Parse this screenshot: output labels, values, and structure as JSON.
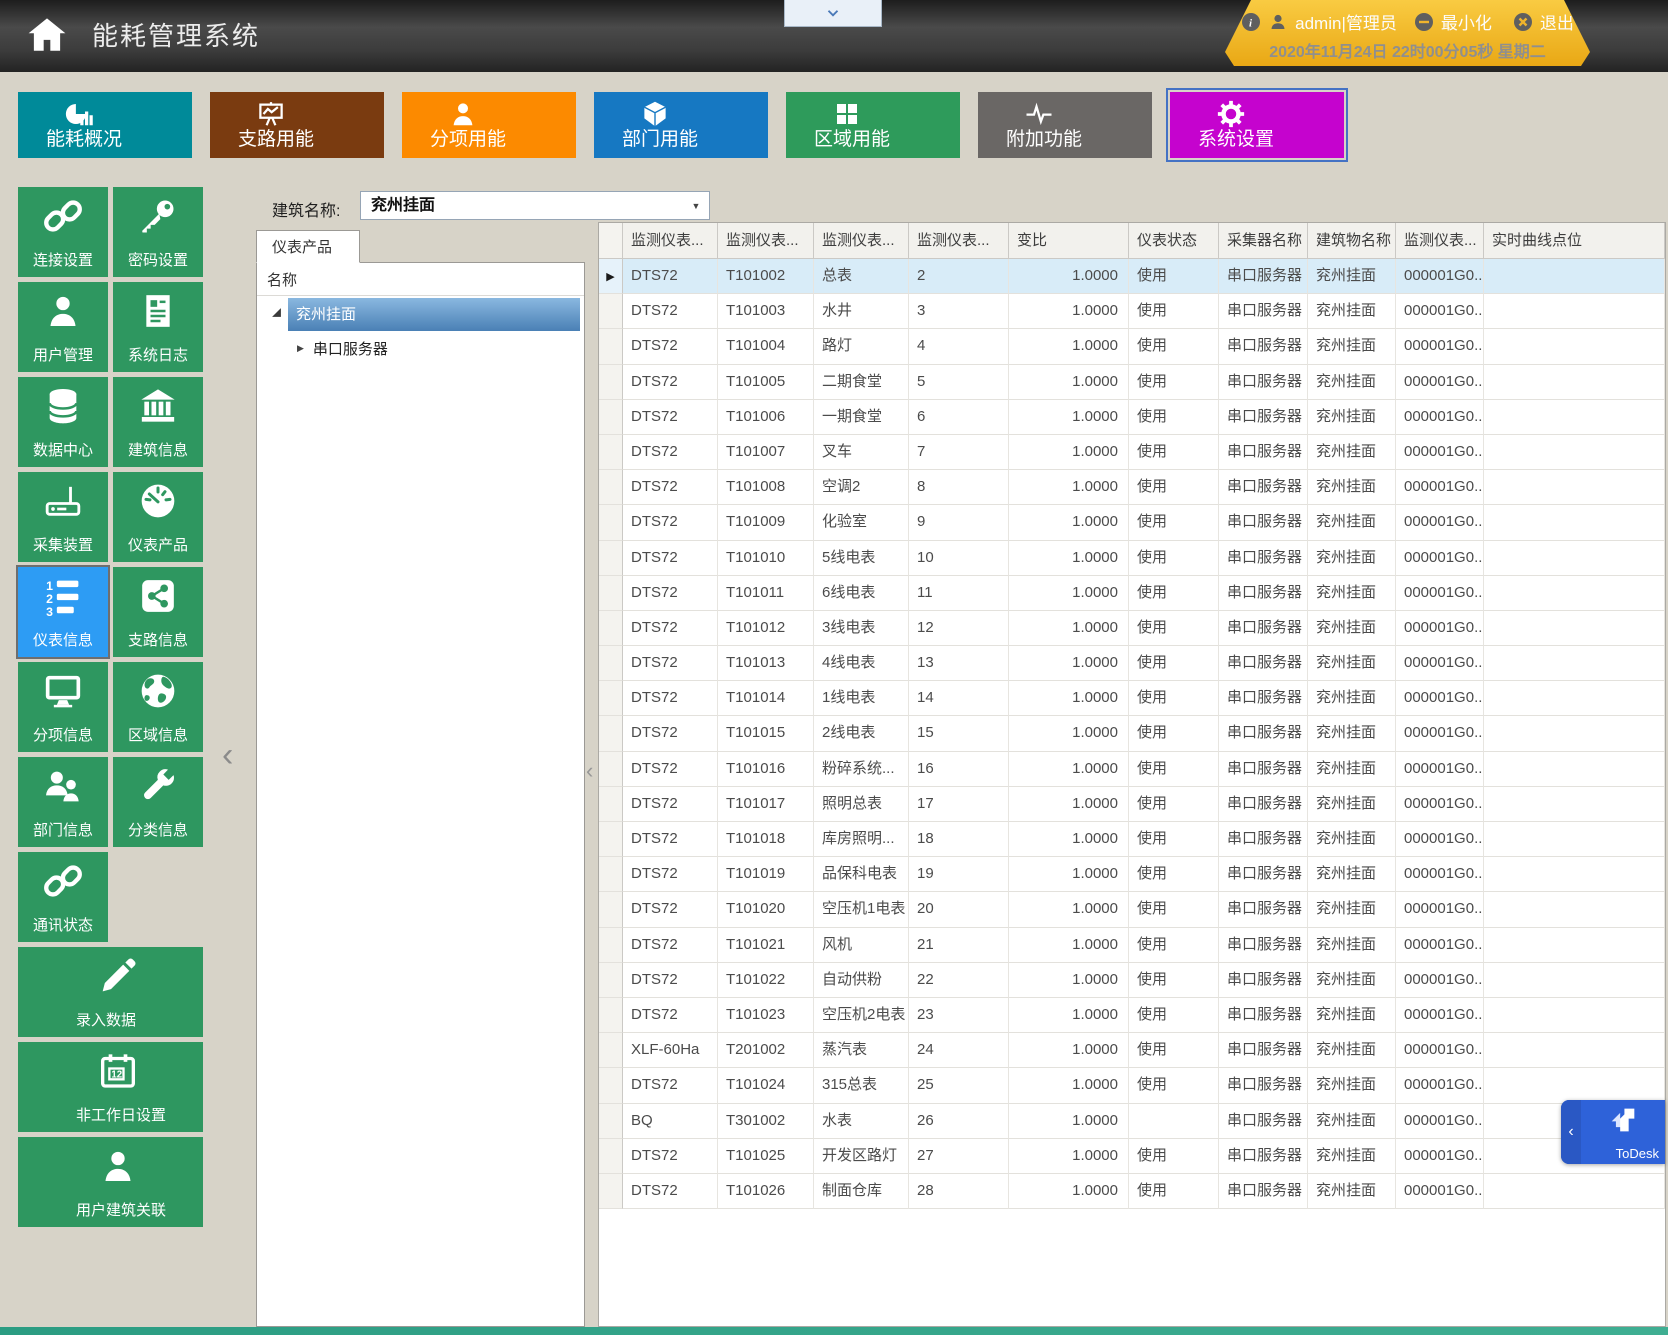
{
  "header": {
    "app_title": "能耗管理系统",
    "user": "admin|管理员",
    "minimize_label": "最小化",
    "exit_label": "退出",
    "datetime": "2020年11月24日 22时00分05秒 星期二"
  },
  "nav_tabs": [
    {
      "label": "能耗概况",
      "icon": "pie-chart-icon",
      "color": "#008A99",
      "selected": false
    },
    {
      "label": "支路用能",
      "icon": "chart-board-icon",
      "color": "#7A3B10",
      "selected": false
    },
    {
      "label": "分项用能",
      "icon": "person-icon",
      "color": "#FC8A00",
      "selected": false
    },
    {
      "label": "部门用能",
      "icon": "cube-icon",
      "color": "#1678C2",
      "selected": false
    },
    {
      "label": "区域用能",
      "icon": "grid-icon",
      "color": "#2E9B5B",
      "selected": false
    },
    {
      "label": "附加功能",
      "icon": "pulse-icon",
      "color": "#6A6765",
      "selected": false
    },
    {
      "label": "系统设置",
      "icon": "gear-icon",
      "color": "#C503CE",
      "selected": true
    }
  ],
  "sidebar": {
    "items": [
      {
        "label": "连接设置",
        "icon": "link-icon",
        "wide": false,
        "selected": false
      },
      {
        "label": "密码设置",
        "icon": "key-icon",
        "wide": false,
        "selected": false
      },
      {
        "label": "用户管理",
        "icon": "user-icon",
        "wide": false,
        "selected": false
      },
      {
        "label": "系统日志",
        "icon": "log-icon",
        "wide": false,
        "selected": false
      },
      {
        "label": "数据中心",
        "icon": "database-icon",
        "wide": false,
        "selected": false
      },
      {
        "label": "建筑信息",
        "icon": "building-icon",
        "wide": false,
        "selected": false
      },
      {
        "label": "采集装置",
        "icon": "router-icon",
        "wide": false,
        "selected": false
      },
      {
        "label": "仪表产品",
        "icon": "gauge-icon",
        "wide": false,
        "selected": false
      },
      {
        "label": "仪表信息",
        "icon": "numbered-list-icon",
        "wide": false,
        "selected": true
      },
      {
        "label": "支路信息",
        "icon": "share-nodes-icon",
        "wide": false,
        "selected": false
      },
      {
        "label": "分项信息",
        "icon": "monitor-icon",
        "wide": false,
        "selected": false
      },
      {
        "label": "区域信息",
        "icon": "globe-icon",
        "wide": false,
        "selected": false
      },
      {
        "label": "部门信息",
        "icon": "users-icon",
        "wide": false,
        "selected": false
      },
      {
        "label": "分类信息",
        "icon": "wrench-icon",
        "wide": false,
        "selected": false
      },
      {
        "label": "通讯状态",
        "icon": "link-icon",
        "wide": false,
        "selected": false
      },
      {
        "label": "录入数据",
        "icon": "pencil-icon",
        "wide": true,
        "selected": false
      },
      {
        "label": "非工作日设置",
        "icon": "calendar-icon",
        "wide": true,
        "selected": false
      },
      {
        "label": "用户建筑关联",
        "icon": "user-icon",
        "wide": true,
        "selected": false
      }
    ]
  },
  "building_selector": {
    "label": "建筑名称:",
    "value": "兖州挂面"
  },
  "tree_panel": {
    "tab_label": "仪表产品",
    "column_header": "名称",
    "root_node": "兖州挂面",
    "child_node": "串口服务器"
  },
  "table": {
    "columns": [
      "监测仪表...",
      "监测仪表...",
      "监测仪表...",
      "监测仪表...",
      "变比",
      "仪表状态",
      "采集器名称",
      "建筑物名称",
      "监测仪表...",
      "实时曲线点位"
    ],
    "selected_row_index": 0,
    "rows": [
      [
        "DTS72",
        "T101002",
        "总表",
        "2",
        "1.0000",
        "使用",
        "串口服务器",
        "兖州挂面",
        "000001G0...",
        ""
      ],
      [
        "DTS72",
        "T101003",
        "水井",
        "3",
        "1.0000",
        "使用",
        "串口服务器",
        "兖州挂面",
        "000001G0...",
        ""
      ],
      [
        "DTS72",
        "T101004",
        "路灯",
        "4",
        "1.0000",
        "使用",
        "串口服务器",
        "兖州挂面",
        "000001G0...",
        ""
      ],
      [
        "DTS72",
        "T101005",
        "二期食堂",
        "5",
        "1.0000",
        "使用",
        "串口服务器",
        "兖州挂面",
        "000001G0...",
        ""
      ],
      [
        "DTS72",
        "T101006",
        "一期食堂",
        "6",
        "1.0000",
        "使用",
        "串口服务器",
        "兖州挂面",
        "000001G0...",
        ""
      ],
      [
        "DTS72",
        "T101007",
        "叉车",
        "7",
        "1.0000",
        "使用",
        "串口服务器",
        "兖州挂面",
        "000001G0...",
        ""
      ],
      [
        "DTS72",
        "T101008",
        "空调2",
        "8",
        "1.0000",
        "使用",
        "串口服务器",
        "兖州挂面",
        "000001G0...",
        ""
      ],
      [
        "DTS72",
        "T101009",
        "化验室",
        "9",
        "1.0000",
        "使用",
        "串口服务器",
        "兖州挂面",
        "000001G0...",
        ""
      ],
      [
        "DTS72",
        "T101010",
        "5线电表",
        "10",
        "1.0000",
        "使用",
        "串口服务器",
        "兖州挂面",
        "000001G0...",
        ""
      ],
      [
        "DTS72",
        "T101011",
        "6线电表",
        "11",
        "1.0000",
        "使用",
        "串口服务器",
        "兖州挂面",
        "000001G0...",
        ""
      ],
      [
        "DTS72",
        "T101012",
        "3线电表",
        "12",
        "1.0000",
        "使用",
        "串口服务器",
        "兖州挂面",
        "000001G0...",
        ""
      ],
      [
        "DTS72",
        "T101013",
        "4线电表",
        "13",
        "1.0000",
        "使用",
        "串口服务器",
        "兖州挂面",
        "000001G0...",
        ""
      ],
      [
        "DTS72",
        "T101014",
        "1线电表",
        "14",
        "1.0000",
        "使用",
        "串口服务器",
        "兖州挂面",
        "000001G0...",
        ""
      ],
      [
        "DTS72",
        "T101015",
        "2线电表",
        "15",
        "1.0000",
        "使用",
        "串口服务器",
        "兖州挂面",
        "000001G0...",
        ""
      ],
      [
        "DTS72",
        "T101016",
        "粉碎系统...",
        "16",
        "1.0000",
        "使用",
        "串口服务器",
        "兖州挂面",
        "000001G0...",
        ""
      ],
      [
        "DTS72",
        "T101017",
        "照明总表",
        "17",
        "1.0000",
        "使用",
        "串口服务器",
        "兖州挂面",
        "000001G0...",
        ""
      ],
      [
        "DTS72",
        "T101018",
        "库房照明...",
        "18",
        "1.0000",
        "使用",
        "串口服务器",
        "兖州挂面",
        "000001G0...",
        ""
      ],
      [
        "DTS72",
        "T101019",
        "品保科电表",
        "19",
        "1.0000",
        "使用",
        "串口服务器",
        "兖州挂面",
        "000001G0...",
        ""
      ],
      [
        "DTS72",
        "T101020",
        "空压机1电表",
        "20",
        "1.0000",
        "使用",
        "串口服务器",
        "兖州挂面",
        "000001G0...",
        ""
      ],
      [
        "DTS72",
        "T101021",
        "风机",
        "21",
        "1.0000",
        "使用",
        "串口服务器",
        "兖州挂面",
        "000001G0...",
        ""
      ],
      [
        "DTS72",
        "T101022",
        "自动供粉",
        "22",
        "1.0000",
        "使用",
        "串口服务器",
        "兖州挂面",
        "000001G0...",
        ""
      ],
      [
        "DTS72",
        "T101023",
        "空压机2电表",
        "23",
        "1.0000",
        "使用",
        "串口服务器",
        "兖州挂面",
        "000001G0...",
        ""
      ],
      [
        "XLF-60Ha",
        "T201002",
        "蒸汽表",
        "24",
        "1.0000",
        "使用",
        "串口服务器",
        "兖州挂面",
        "000001G0...",
        ""
      ],
      [
        "DTS72",
        "T101024",
        "315总表",
        "25",
        "1.0000",
        "使用",
        "串口服务器",
        "兖州挂面",
        "000001G0...",
        ""
      ],
      [
        "BQ",
        "T301002",
        "水表",
        "26",
        "1.0000",
        "",
        "串口服务器",
        "兖州挂面",
        "000001G0...",
        ""
      ],
      [
        "DTS72",
        "T101025",
        "开发区路灯",
        "27",
        "1.0000",
        "使用",
        "串口服务器",
        "兖州挂面",
        "000001G0...",
        ""
      ],
      [
        "DTS72",
        "T101026",
        "制面仓库",
        "28",
        "1.0000",
        "使用",
        "串口服务器",
        "兖州挂面",
        "000001G0...",
        ""
      ]
    ]
  },
  "todesk_label": "ToDesk",
  "colors": {
    "gold_banner": "#F2BB2E",
    "sidebar_tile_green": "#2E9760",
    "selected_tile_blue": "#2D9CF4",
    "selected_row_blue": "#D8ECF8",
    "footer_teal": "#35A58B"
  }
}
